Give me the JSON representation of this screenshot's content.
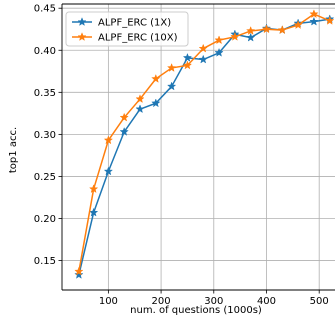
{
  "chart_data": {
    "type": "line",
    "title": "",
    "xlabel": "num. of questions (1000s)",
    "ylabel": "top1 acc.",
    "xlim": [
      12,
      530
    ],
    "ylim": [
      0.115,
      0.455
    ],
    "x_ticks": [
      100,
      200,
      300,
      400,
      500
    ],
    "y_ticks": [
      0.15,
      0.2,
      0.25,
      0.3,
      0.35,
      0.4,
      0.45
    ],
    "y_tick_labels": [
      "0.15",
      "0.20",
      "0.25",
      "0.30",
      "0.35",
      "0.40",
      "0.45"
    ],
    "grid": true,
    "legend_position": "top-left",
    "series": [
      {
        "name": "ALPF_ERC (1X)",
        "color": "#1f77b4",
        "marker": "star",
        "x": [
          44,
          72,
          100,
          130,
          160,
          190,
          220,
          250,
          280,
          310,
          340,
          370,
          400,
          430,
          460,
          490,
          520
        ],
        "y": [
          0.133,
          0.207,
          0.256,
          0.303,
          0.33,
          0.337,
          0.357,
          0.391,
          0.389,
          0.397,
          0.419,
          0.415,
          0.426,
          0.424,
          0.432,
          0.434,
          0.437
        ]
      },
      {
        "name": "ALPF_ERC (10X)",
        "color": "#ff7f0e",
        "marker": "star",
        "x": [
          44,
          72,
          100,
          130,
          160,
          190,
          220,
          250,
          280,
          310,
          340,
          370,
          400,
          430,
          460,
          490,
          520
        ],
        "y": [
          0.137,
          0.235,
          0.293,
          0.32,
          0.342,
          0.366,
          0.379,
          0.382,
          0.402,
          0.412,
          0.416,
          0.423,
          0.425,
          0.424,
          0.43,
          0.443,
          0.435
        ]
      }
    ]
  }
}
